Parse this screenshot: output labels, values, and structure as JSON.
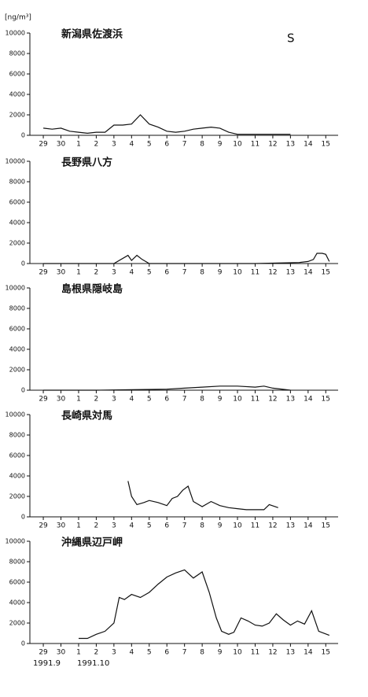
{
  "chart_data": [
    {
      "type": "line",
      "title": "新潟県佐渡浜",
      "y_axis_label": "[ng/m³]",
      "annotation": "S",
      "x": [
        0,
        0.5,
        1,
        1.5,
        2,
        2.5,
        3,
        3.5,
        4,
        4.5,
        5,
        5.5,
        6,
        6.5,
        7,
        7.5,
        8,
        8.5,
        9,
        9.5,
        10,
        10.5,
        11,
        11.5,
        12,
        12.5,
        13,
        13.5,
        14
      ],
      "values": [
        700,
        600,
        700,
        400,
        300,
        200,
        300,
        300,
        1000,
        1000,
        1100,
        2000,
        1100,
        800,
        400,
        300,
        400,
        600,
        700,
        800,
        700,
        300,
        100,
        100,
        100,
        100,
        100,
        100,
        100
      ],
      "xlim": [
        -0.76,
        16.7
      ],
      "ylim": [
        0,
        10000
      ],
      "yticks": [
        0,
        2000,
        4000,
        6000,
        8000,
        10000
      ],
      "xticks": [
        {
          "value": 0,
          "label": "29"
        },
        {
          "value": 1,
          "label": "30"
        },
        {
          "value": 2,
          "label": "1"
        },
        {
          "value": 3,
          "label": "2"
        },
        {
          "value": 4,
          "label": "3"
        },
        {
          "value": 5,
          "label": "4"
        },
        {
          "value": 6,
          "label": "5"
        },
        {
          "value": 7,
          "label": "6"
        },
        {
          "value": 8,
          "label": "7"
        },
        {
          "value": 9,
          "label": "8"
        },
        {
          "value": 10,
          "label": "9"
        },
        {
          "value": 11,
          "label": "10"
        },
        {
          "value": 12,
          "label": "11"
        },
        {
          "value": 13,
          "label": "12"
        },
        {
          "value": 14,
          "label": "13"
        },
        {
          "value": 15,
          "label": "14"
        },
        {
          "value": 16,
          "label": "15"
        }
      ]
    },
    {
      "type": "line",
      "title": "長野県八方",
      "x": [
        0,
        4,
        4.8,
        5,
        5.3,
        5.6,
        6,
        8,
        12,
        14.5,
        15,
        15.3,
        15.5,
        15.8,
        16,
        16.2
      ],
      "values": [
        0,
        0,
        800,
        300,
        800,
        400,
        0,
        0,
        0,
        100,
        200,
        400,
        1000,
        1000,
        900,
        200
      ],
      "xlim": [
        -0.76,
        16.7
      ],
      "ylim": [
        0,
        10000
      ],
      "yticks": [
        0,
        2000,
        4000,
        6000,
        8000,
        10000
      ],
      "xticks": [
        {
          "value": 0,
          "label": "29"
        },
        {
          "value": 1,
          "label": "30"
        },
        {
          "value": 2,
          "label": "1"
        },
        {
          "value": 3,
          "label": "2"
        },
        {
          "value": 4,
          "label": "3"
        },
        {
          "value": 5,
          "label": "4"
        },
        {
          "value": 6,
          "label": "5"
        },
        {
          "value": 7,
          "label": "6"
        },
        {
          "value": 8,
          "label": "7"
        },
        {
          "value": 9,
          "label": "8"
        },
        {
          "value": 10,
          "label": "9"
        },
        {
          "value": 11,
          "label": "10"
        },
        {
          "value": 12,
          "label": "11"
        },
        {
          "value": 13,
          "label": "12"
        },
        {
          "value": 14,
          "label": "13"
        },
        {
          "value": 15,
          "label": "14"
        },
        {
          "value": 16,
          "label": "15"
        }
      ]
    },
    {
      "type": "line",
      "title": "島根県隠岐島",
      "x": [
        0,
        3,
        5,
        7,
        8,
        9,
        10,
        11,
        12,
        12.5,
        13,
        14
      ],
      "values": [
        0,
        0,
        50,
        100,
        200,
        300,
        400,
        400,
        300,
        400,
        200,
        0
      ],
      "xlim": [
        -0.76,
        16.7
      ],
      "ylim": [
        0,
        10000
      ],
      "yticks": [
        0,
        2000,
        4000,
        6000,
        8000,
        10000
      ],
      "xticks": [
        {
          "value": 0,
          "label": "29"
        },
        {
          "value": 1,
          "label": "30"
        },
        {
          "value": 2,
          "label": "1"
        },
        {
          "value": 3,
          "label": "2"
        },
        {
          "value": 4,
          "label": "3"
        },
        {
          "value": 5,
          "label": "4"
        },
        {
          "value": 6,
          "label": "5"
        },
        {
          "value": 7,
          "label": "6"
        },
        {
          "value": 8,
          "label": "7"
        },
        {
          "value": 9,
          "label": "8"
        },
        {
          "value": 10,
          "label": "9"
        },
        {
          "value": 11,
          "label": "10"
        },
        {
          "value": 12,
          "label": "11"
        },
        {
          "value": 13,
          "label": "12"
        },
        {
          "value": 14,
          "label": "13"
        },
        {
          "value": 15,
          "label": "14"
        },
        {
          "value": 16,
          "label": "15"
        }
      ]
    },
    {
      "type": "line",
      "title": "長崎県対馬",
      "x": [
        4.8,
        5,
        5.3,
        5.7,
        6,
        6.5,
        7,
        7.3,
        7.6,
        7.9,
        8.2,
        8.5,
        9,
        9.5,
        10,
        10.5,
        11,
        11.5,
        12,
        12.5,
        12.8,
        13.3
      ],
      "values": [
        3500,
        2000,
        1200,
        1400,
        1600,
        1400,
        1100,
        1800,
        2000,
        2600,
        3000,
        1500,
        1000,
        1500,
        1100,
        900,
        800,
        700,
        700,
        700,
        1200,
        900
      ],
      "xlim": [
        -0.76,
        16.7
      ],
      "ylim": [
        0,
        10000
      ],
      "yticks": [
        0,
        2000,
        4000,
        6000,
        8000,
        10000
      ],
      "xticks": [
        {
          "value": 0,
          "label": "29"
        },
        {
          "value": 1,
          "label": "30"
        },
        {
          "value": 2,
          "label": "1"
        },
        {
          "value": 3,
          "label": "2"
        },
        {
          "value": 4,
          "label": "3"
        },
        {
          "value": 5,
          "label": "4"
        },
        {
          "value": 6,
          "label": "5"
        },
        {
          "value": 7,
          "label": "6"
        },
        {
          "value": 8,
          "label": "7"
        },
        {
          "value": 9,
          "label": "8"
        },
        {
          "value": 10,
          "label": "9"
        },
        {
          "value": 11,
          "label": "10"
        },
        {
          "value": 12,
          "label": "11"
        },
        {
          "value": 13,
          "label": "12"
        },
        {
          "value": 14,
          "label": "13"
        },
        {
          "value": 15,
          "label": "14"
        },
        {
          "value": 16,
          "label": "15"
        }
      ]
    },
    {
      "type": "line",
      "title": "沖縄県辺戸岬",
      "x_date_labels": [
        "1991.9",
        "1991.10"
      ],
      "x": [
        2,
        2.5,
        3,
        3.5,
        4,
        4.3,
        4.6,
        5,
        5.5,
        6,
        6.5,
        7,
        7.5,
        8,
        8.5,
        9,
        9.4,
        9.8,
        10.1,
        10.5,
        10.8,
        11.2,
        11.6,
        12,
        12.4,
        12.8,
        13.2,
        13.6,
        14,
        14.4,
        14.8,
        15.2,
        15.6,
        16.2
      ],
      "values": [
        500,
        500,
        900,
        1200,
        2000,
        4500,
        4300,
        4800,
        4500,
        5000,
        5800,
        6500,
        6900,
        7200,
        6400,
        7000,
        5000,
        2500,
        1200,
        900,
        1100,
        2500,
        2200,
        1800,
        1700,
        2000,
        2900,
        2300,
        1800,
        2200,
        1900,
        3200,
        1200,
        800
      ],
      "xlim": [
        -0.76,
        16.7
      ],
      "ylim": [
        0,
        10000
      ],
      "yticks": [
        0,
        2000,
        4000,
        6000,
        8000,
        10000
      ],
      "xticks": [
        {
          "value": 0,
          "label": "29"
        },
        {
          "value": 1,
          "label": "30"
        },
        {
          "value": 2,
          "label": "1"
        },
        {
          "value": 3,
          "label": "2"
        },
        {
          "value": 4,
          "label": "3"
        },
        {
          "value": 5,
          "label": "4"
        },
        {
          "value": 6,
          "label": "5"
        },
        {
          "value": 7,
          "label": "6"
        },
        {
          "value": 8,
          "label": "7"
        },
        {
          "value": 9,
          "label": "8"
        },
        {
          "value": 10,
          "label": "9"
        },
        {
          "value": 11,
          "label": "10"
        },
        {
          "value": 12,
          "label": "11"
        },
        {
          "value": 13,
          "label": "12"
        },
        {
          "value": 14,
          "label": "13"
        },
        {
          "value": 15,
          "label": "14"
        },
        {
          "value": 16,
          "label": "15"
        }
      ]
    }
  ]
}
